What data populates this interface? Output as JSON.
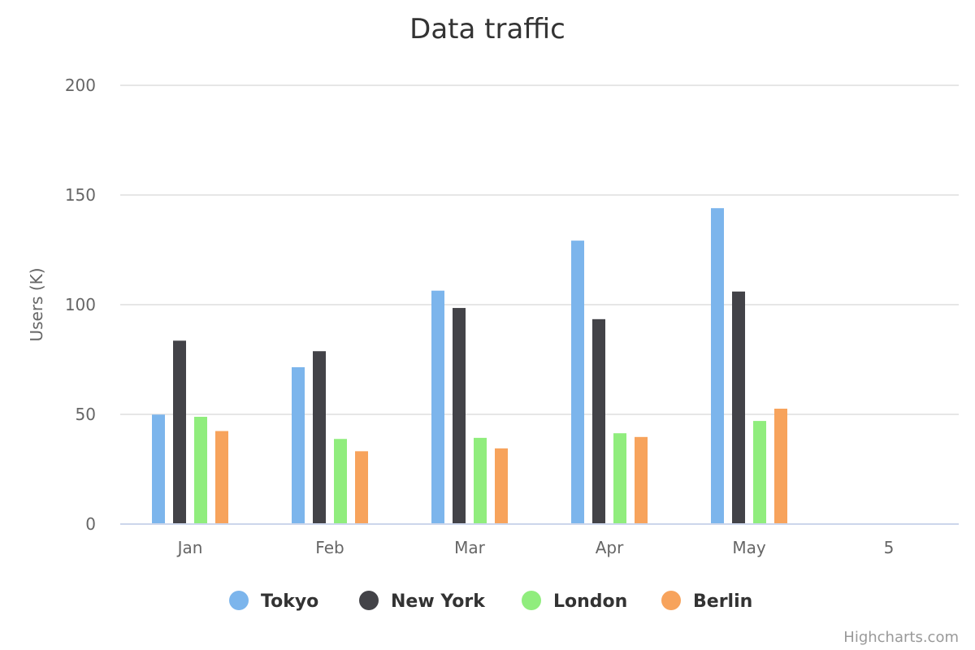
{
  "chart_data": {
    "type": "bar",
    "title": "Data traffic",
    "xlabel": "",
    "ylabel": "Users (K)",
    "ylim": [
      0,
      200
    ],
    "yticks": [
      0,
      50,
      100,
      150,
      200
    ],
    "categories": [
      "Jan",
      "Feb",
      "Mar",
      "Apr",
      "May",
      "5"
    ],
    "series": [
      {
        "name": "Tokyo",
        "color": "#7cb5ec",
        "values": [
          49.9,
          71.5,
          106.4,
          129.2,
          144.0,
          null
        ]
      },
      {
        "name": "New York",
        "color": "#434348",
        "values": [
          83.6,
          78.8,
          98.5,
          93.4,
          106.0,
          null
        ]
      },
      {
        "name": "London",
        "color": "#90ed7d",
        "values": [
          48.9,
          38.8,
          39.3,
          41.4,
          47.0,
          null
        ]
      },
      {
        "name": "Berlin",
        "color": "#f7a35c",
        "values": [
          42.4,
          33.2,
          34.5,
          39.7,
          52.6,
          null
        ]
      }
    ],
    "legend_position": "bottom-center",
    "grid": true
  },
  "credits": "Highcharts.com"
}
